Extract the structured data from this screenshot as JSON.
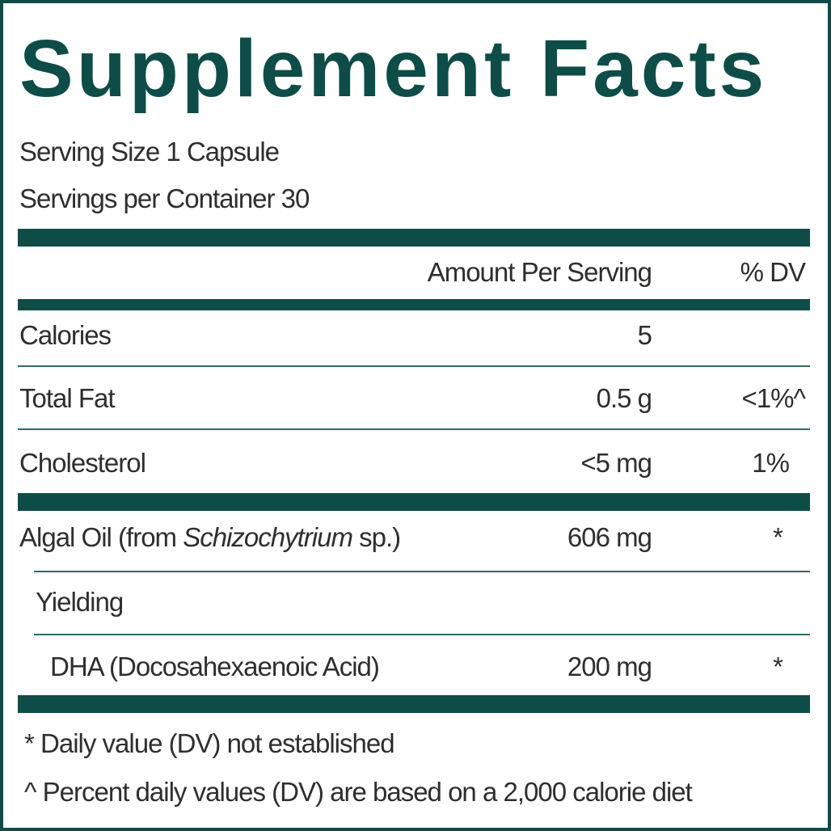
{
  "header": {
    "title": "Supplement Facts",
    "serving_size": "Serving Size 1 Capsule",
    "servings_per_container": "Servings per Container 30"
  },
  "table": {
    "columns": [
      "Amount Per Serving",
      "% DV"
    ],
    "rows": [
      {
        "label": "Calories",
        "amount": "5"
      },
      {
        "label": "Total Fat",
        "amount": "0.5 g",
        "dv": "<1%^"
      },
      {
        "label": "Cholesterol",
        "amount": "<5 mg",
        "dv": "1%"
      },
      {
        "label_parts": [
          "Algal Oil (from ",
          "Schizochytrium",
          " sp.)"
        ],
        "amount": "606 mg",
        "dv": "*"
      },
      {
        "label": "Yielding"
      },
      {
        "label": "DHA (Docosahexaenoic Acid)",
        "amount": "200 mg",
        "dv": "*"
      }
    ]
  },
  "footnotes": [
    "* Daily value (DV) not established",
    "^ Percent daily values (DV) are based on a 2,000 calorie diet"
  ]
}
